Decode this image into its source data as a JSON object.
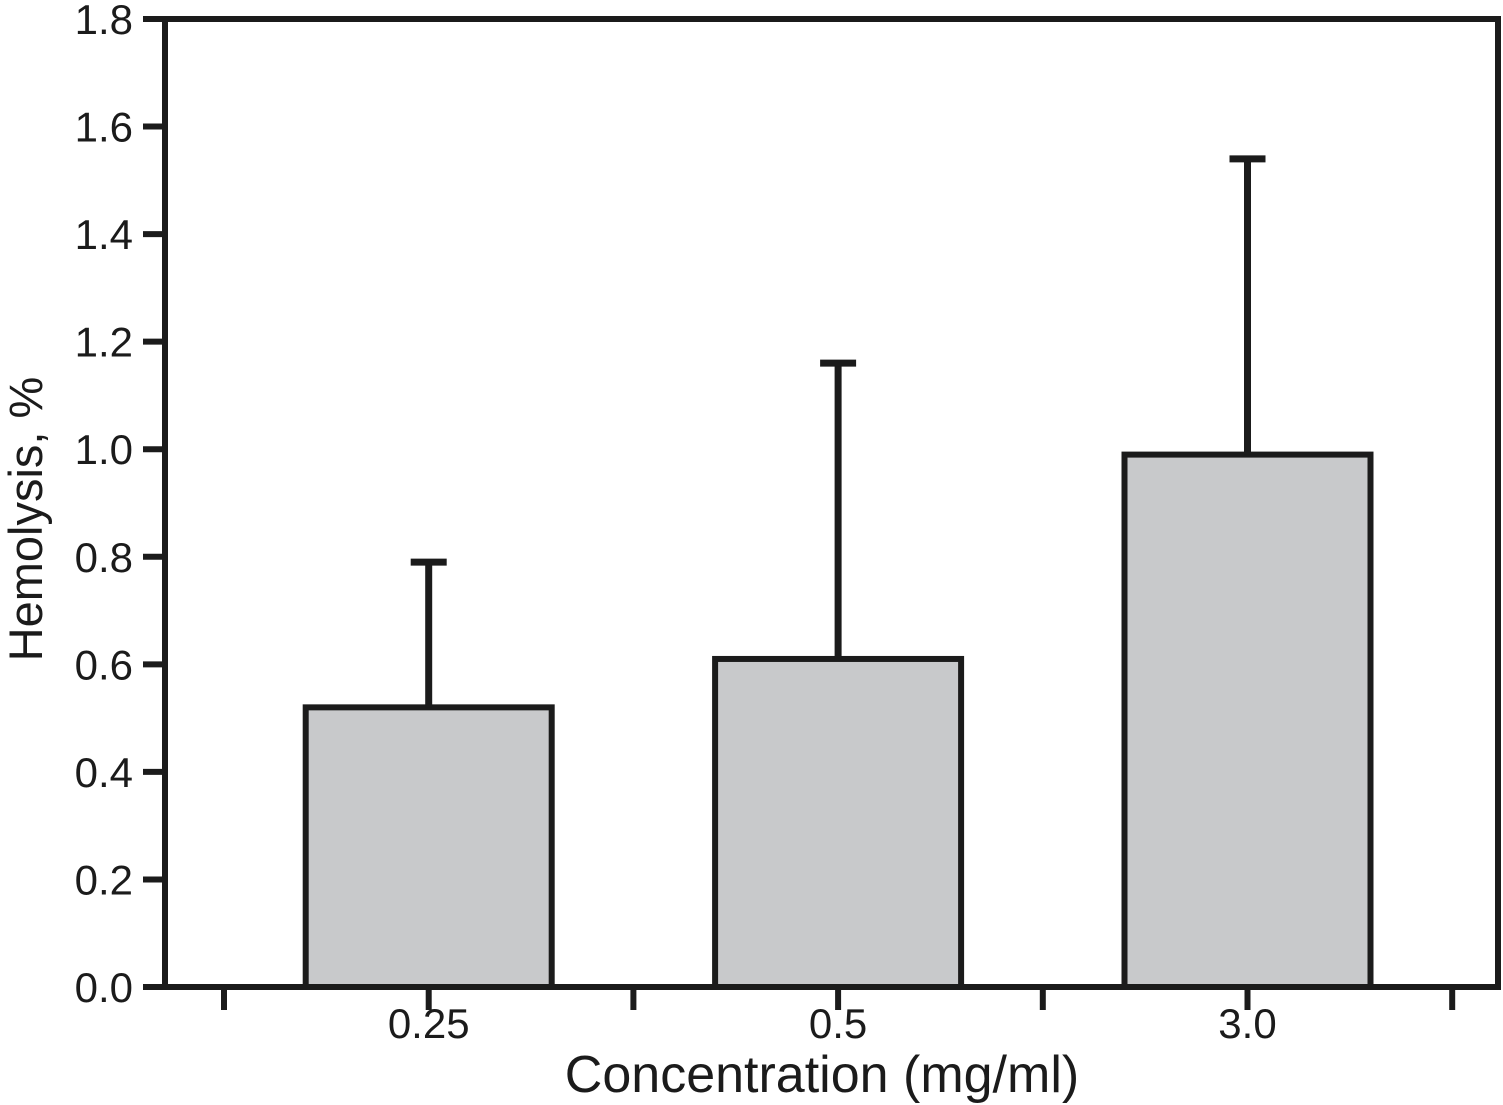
{
  "chart_data": {
    "type": "bar",
    "title": "",
    "xlabel": "Concentration (mg/ml)",
    "ylabel": "Hemolysis, %",
    "categories": [
      "0.25",
      "0.5",
      "3.0"
    ],
    "values": [
      0.52,
      0.61,
      0.99
    ],
    "error_upper": [
      0.27,
      0.55,
      0.55
    ],
    "error_tops": [
      0.79,
      1.16,
      1.54
    ],
    "ylim": [
      0.0,
      1.8
    ],
    "ytick_step": 0.2,
    "ytick_labels": [
      "0.0",
      "0.2",
      "0.4",
      "0.6",
      "0.8",
      "1.0",
      "1.2",
      "1.4",
      "1.6",
      "1.8"
    ],
    "x_axis": {
      "num_ticks": 7,
      "labeled_tick_indices": [
        1,
        3,
        5
      ]
    },
    "grid": false,
    "legend": null,
    "colors": {
      "bar_fill": "#C8C9CB",
      "stroke": "#1B1B1B",
      "background": "#FFFFFF"
    }
  }
}
